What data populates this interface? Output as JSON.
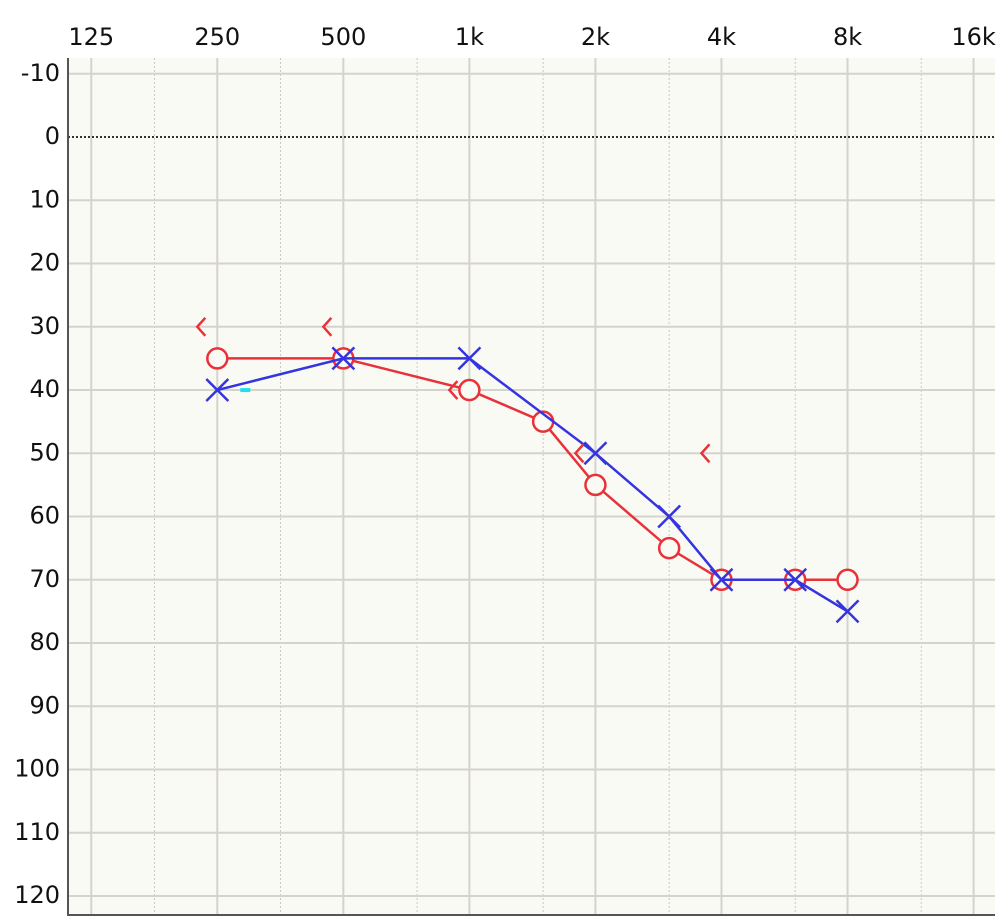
{
  "chart_data": {
    "type": "line",
    "xscale": "log",
    "y_inverted": true,
    "xlim": [
      110,
      18000
    ],
    "ylim": [
      -12.5,
      123
    ],
    "xticks": [
      125,
      250,
      500,
      {
        "value": 1000,
        "label": "1k"
      },
      {
        "value": 2000,
        "label": "2k"
      },
      {
        "value": 4000,
        "label": "4k"
      },
      {
        "value": 8000,
        "label": "8k"
      },
      {
        "value": 16000,
        "label": "16k"
      }
    ],
    "xminorticks": [
      177,
      354,
      750,
      1500,
      3000,
      6000,
      12000
    ],
    "yticks": [
      -10,
      0,
      10,
      20,
      30,
      40,
      50,
      60,
      70,
      80,
      90,
      100,
      110,
      120
    ],
    "grid": true,
    "zero_line": true,
    "series": [
      {
        "color": "#e8323a",
        "symbol": "o",
        "line": true,
        "x": [
          250,
          500,
          1000,
          1500,
          2000,
          3000,
          4000,
          6000,
          8000
        ],
        "values": [
          35,
          35,
          40,
          45,
          55,
          65,
          70,
          70,
          70
        ]
      },
      {
        "color": "#3434e0",
        "symbol": "x",
        "line": true,
        "x": [
          250,
          500,
          1000,
          2000,
          3000,
          4000,
          6000,
          8000
        ],
        "values": [
          40,
          35,
          35,
          50,
          60,
          70,
          70,
          75
        ]
      },
      {
        "color": "#e8323a",
        "symbol": "<",
        "line": false,
        "x": [
          250,
          500,
          1000,
          2000,
          4000
        ],
        "values": [
          30,
          30,
          40,
          50,
          50
        ]
      },
      {
        "color": "#20e0f0",
        "symbol": "-",
        "line": false,
        "x": [
          250
        ],
        "values": [
          40
        ]
      }
    ]
  }
}
